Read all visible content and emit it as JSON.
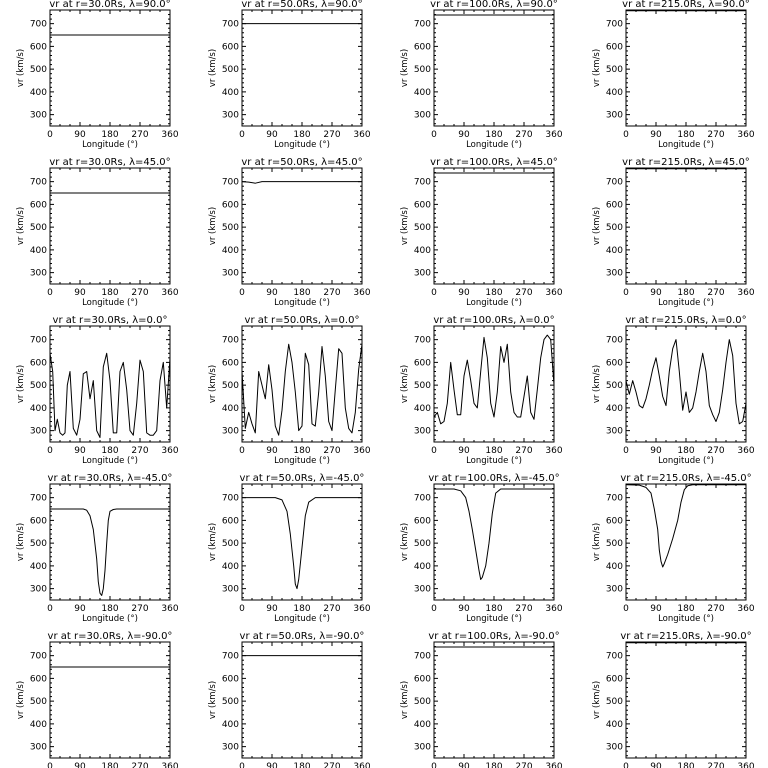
{
  "chart_data": {
    "type": "line",
    "layout": "5x4 grid of small multiples",
    "x_axis": {
      "label": "Longitude (°)",
      "range": [
        0,
        360
      ],
      "ticks": [
        0,
        90,
        180,
        270,
        360
      ]
    },
    "y_axis": {
      "label": "vr (km/s)",
      "range": [
        250,
        760
      ],
      "ticks": [
        300,
        400,
        500,
        600,
        700
      ]
    },
    "grid": false,
    "legend": "none",
    "line_color": "#000000",
    "panels": [
      {
        "title": "vr at r=30.0Rs, λ=90.0°",
        "x": [
          0,
          360
        ],
        "y": [
          650,
          650
        ]
      },
      {
        "title": "vr at r=50.0Rs, λ=90.0°",
        "x": [
          0,
          360
        ],
        "y": [
          700,
          700
        ]
      },
      {
        "title": "vr at r=100.0Rs, λ=90.0°",
        "x": [
          0,
          360
        ],
        "y": [
          738,
          738
        ]
      },
      {
        "title": "vr at r=215.0Rs, λ=90.0°",
        "x": [
          0,
          360
        ],
        "y": [
          757,
          757
        ]
      },
      {
        "title": "vr at r=30.0Rs, λ=45.0°",
        "x": [
          0,
          360
        ],
        "y": [
          650,
          650
        ]
      },
      {
        "title": "vr at r=50.0Rs, λ=45.0°",
        "x": [
          0,
          20,
          40,
          60,
          360
        ],
        "y": [
          700,
          698,
          693,
          700,
          700
        ]
      },
      {
        "title": "vr at r=100.0Rs, λ=45.0°",
        "x": [
          0,
          360
        ],
        "y": [
          738,
          738
        ]
      },
      {
        "title": "vr at r=215.0Rs, λ=45.0°",
        "x": [
          0,
          360
        ],
        "y": [
          757,
          757
        ]
      },
      {
        "title": "vr at r=30.0Rs, λ=0.0°",
        "x": [
          0,
          8,
          15,
          22,
          30,
          38,
          45,
          52,
          60,
          70,
          80,
          90,
          100,
          110,
          120,
          130,
          140,
          150,
          160,
          170,
          180,
          190,
          200,
          210,
          220,
          230,
          240,
          250,
          260,
          270,
          280,
          290,
          300,
          310,
          320,
          330,
          340,
          350,
          360
        ],
        "y": [
          640,
          560,
          300,
          350,
          290,
          280,
          290,
          500,
          560,
          310,
          280,
          350,
          550,
          560,
          440,
          520,
          300,
          270,
          580,
          640,
          520,
          290,
          290,
          560,
          600,
          480,
          300,
          280,
          420,
          610,
          560,
          290,
          280,
          280,
          300,
          520,
          600,
          400,
          620
        ]
      },
      {
        "title": "vr at r=50.0Rs, λ=0.0°",
        "x": [
          0,
          10,
          20,
          30,
          40,
          50,
          60,
          70,
          80,
          90,
          100,
          110,
          120,
          130,
          140,
          150,
          160,
          170,
          180,
          190,
          200,
          210,
          220,
          230,
          240,
          250,
          260,
          270,
          280,
          290,
          300,
          310,
          320,
          330,
          340,
          350,
          360
        ],
        "y": [
          560,
          310,
          380,
          330,
          290,
          560,
          500,
          440,
          590,
          480,
          320,
          280,
          390,
          560,
          680,
          600,
          470,
          300,
          320,
          640,
          590,
          330,
          320,
          470,
          670,
          540,
          340,
          300,
          480,
          660,
          640,
          400,
          310,
          290,
          380,
          570,
          680
        ]
      },
      {
        "title": "vr at r=100.0Rs, λ=0.0°",
        "x": [
          0,
          10,
          20,
          30,
          40,
          50,
          60,
          70,
          80,
          90,
          100,
          110,
          120,
          130,
          140,
          150,
          160,
          170,
          180,
          190,
          200,
          210,
          220,
          230,
          240,
          250,
          260,
          270,
          280,
          290,
          300,
          310,
          320,
          330,
          340,
          350,
          360
        ],
        "y": [
          360,
          380,
          330,
          340,
          420,
          600,
          480,
          370,
          370,
          540,
          610,
          520,
          420,
          400,
          560,
          710,
          620,
          420,
          360,
          470,
          670,
          600,
          680,
          470,
          380,
          360,
          360,
          450,
          540,
          380,
          350,
          480,
          620,
          700,
          720,
          700,
          500
        ]
      },
      {
        "title": "vr at r=215.0Rs, λ=0.0°",
        "x": [
          0,
          10,
          20,
          30,
          40,
          50,
          60,
          70,
          80,
          90,
          100,
          110,
          120,
          130,
          140,
          150,
          160,
          170,
          180,
          190,
          200,
          210,
          220,
          230,
          240,
          250,
          260,
          270,
          280,
          290,
          300,
          310,
          320,
          330,
          340,
          350,
          360
        ],
        "y": [
          520,
          460,
          520,
          470,
          410,
          400,
          440,
          500,
          570,
          620,
          540,
          450,
          410,
          560,
          660,
          700,
          560,
          390,
          470,
          380,
          400,
          470,
          560,
          640,
          560,
          410,
          370,
          340,
          380,
          480,
          600,
          700,
          630,
          420,
          330,
          340,
          420
        ]
      },
      {
        "title": "vr at r=30.0Rs, λ=-45.0°",
        "x": [
          0,
          100,
          110,
          120,
          130,
          140,
          145,
          150,
          155,
          160,
          165,
          170,
          175,
          180,
          190,
          200,
          360
        ],
        "y": [
          650,
          650,
          645,
          620,
          560,
          430,
          330,
          280,
          270,
          300,
          380,
          500,
          600,
          640,
          648,
          650,
          650
        ]
      },
      {
        "title": "vr at r=50.0Rs, λ=-45.0°",
        "x": [
          0,
          100,
          120,
          135,
          145,
          150,
          155,
          160,
          165,
          170,
          180,
          190,
          200,
          220,
          360
        ],
        "y": [
          700,
          700,
          690,
          640,
          540,
          470,
          400,
          320,
          300,
          340,
          480,
          620,
          680,
          700,
          700
        ]
      },
      {
        "title": "vr at r=100.0Rs, λ=-45.0°",
        "x": [
          0,
          60,
          80,
          95,
          105,
          115,
          125,
          135,
          140,
          145,
          155,
          165,
          175,
          185,
          200,
          360
        ],
        "y": [
          738,
          738,
          730,
          700,
          640,
          560,
          470,
          380,
          340,
          350,
          400,
          500,
          630,
          720,
          738,
          738
        ]
      },
      {
        "title": "vr at r=215.0Rs, λ=-45.0°",
        "x": [
          0,
          40,
          60,
          75,
          85,
          95,
          100,
          105,
          110,
          115,
          125,
          140,
          155,
          165,
          175,
          185,
          200,
          360
        ],
        "y": [
          757,
          755,
          745,
          720,
          650,
          560,
          470,
          420,
          395,
          410,
          450,
          520,
          600,
          680,
          735,
          752,
          757,
          757
        ]
      },
      {
        "title": "vr at r=30.0Rs, λ=-90.0°",
        "x": [
          0,
          360
        ],
        "y": [
          650,
          650
        ]
      },
      {
        "title": "vr at r=50.0Rs, λ=-90.0°",
        "x": [
          0,
          360
        ],
        "y": [
          700,
          700
        ]
      },
      {
        "title": "vr at r=100.0Rs, λ=-90.0°",
        "x": [
          0,
          360
        ],
        "y": [
          738,
          738
        ]
      },
      {
        "title": "vr at r=215.0Rs, λ=-90.0°",
        "x": [
          0,
          360
        ],
        "y": [
          757,
          757
        ]
      }
    ]
  }
}
